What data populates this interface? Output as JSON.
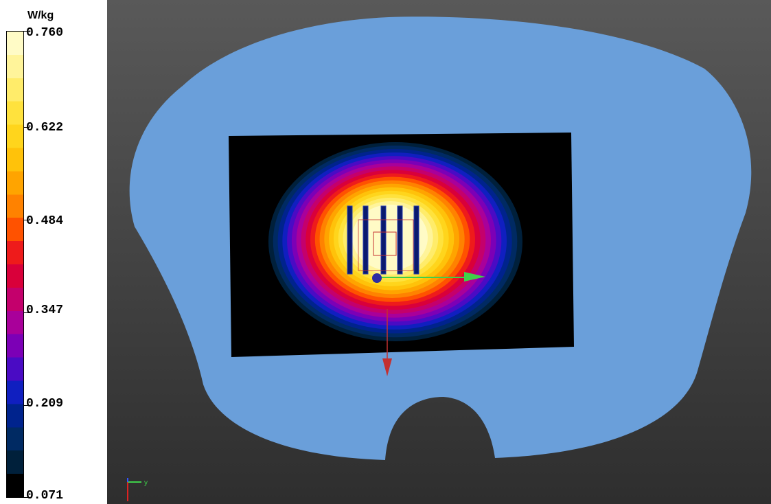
{
  "legend": {
    "unit": "W/kg",
    "ticks": [
      "0.760",
      "0.622",
      "0.484",
      "0.347",
      "0.209",
      "0.071"
    ],
    "colors": [
      "#fffbc6",
      "#fff49a",
      "#ffec6a",
      "#ffe23d",
      "#ffd51c",
      "#ffc20a",
      "#ffa400",
      "#ff8200",
      "#ff5200",
      "#ee1b1b",
      "#d9003a",
      "#c4006c",
      "#a9009a",
      "#7c00b6",
      "#4a0bc4",
      "#101fc0",
      "#00238d",
      "#002a63",
      "#00203b",
      "#000000"
    ]
  },
  "viewport": {
    "background_top": "#595959",
    "background_bottom": "#2e2e2e",
    "phantom_color": "#6a9fda",
    "map_background": "#000000",
    "axis_icon": "axis-triad-icon",
    "axis_label": "y"
  }
}
